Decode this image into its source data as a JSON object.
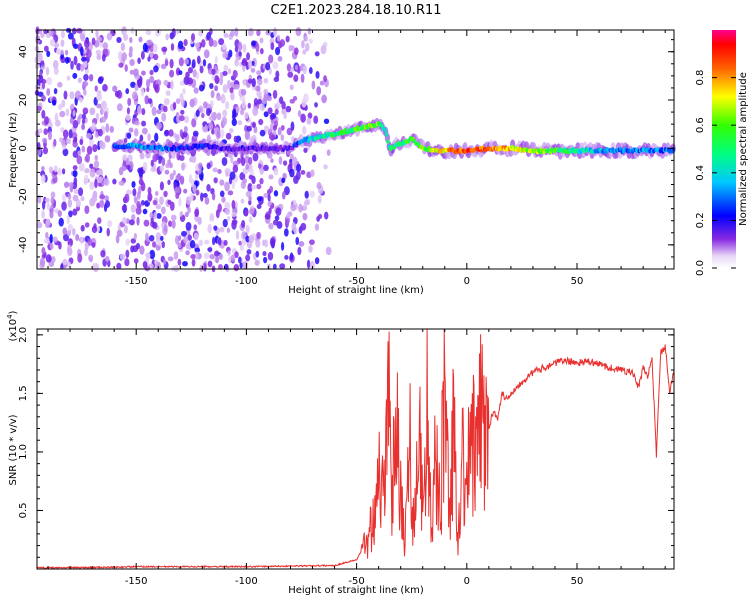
{
  "title": "C2E1.2023.284.18.10.R11",
  "chart_data": [
    {
      "type": "heatmap",
      "xlabel": "Height of straight line (km)",
      "ylabel": "Frequency (Hz)",
      "xlim": [
        -195,
        94
      ],
      "ylim": [
        -50,
        49
      ],
      "xticks": [
        -150,
        -100,
        -50,
        0,
        50
      ],
      "yticks": [
        -40,
        -20,
        0,
        20,
        40
      ],
      "colorbar": {
        "label": "Normalized spectral amplitude",
        "range": [
          0,
          1
        ],
        "ticks": [
          0.0,
          0.2,
          0.4,
          0.6,
          0.8
        ],
        "colormap": "rainbow (white-violet-blue-cyan-green-yellow-red)"
      },
      "trace": {
        "description": "dominant spectral ridge near 0 Hz",
        "x": [
          -160,
          -150,
          -140,
          -130,
          -120,
          -110,
          -100,
          -90,
          -80,
          -75,
          -70,
          -60,
          -50,
          -45,
          -40,
          -37,
          -35,
          -30,
          -25,
          -20,
          -10,
          0,
          10,
          20,
          30,
          40,
          50,
          60,
          70,
          80,
          90,
          94
        ],
        "y": [
          1,
          1,
          0,
          0,
          1,
          0,
          0,
          0,
          0,
          3,
          4,
          6,
          8,
          9,
          10,
          8,
          0,
          2,
          4,
          0,
          -1,
          -1,
          0,
          0,
          -1,
          -1,
          -1,
          -1,
          -1,
          -1,
          -1,
          -1
        ],
        "amplitude": [
          0.25,
          0.35,
          0.3,
          0.25,
          0.2,
          0.15,
          0.15,
          0.12,
          0.15,
          0.3,
          0.4,
          0.5,
          0.55,
          0.6,
          0.6,
          0.4,
          0.45,
          0.5,
          0.55,
          0.6,
          0.75,
          0.9,
          0.85,
          0.75,
          0.65,
          0.55,
          0.45,
          0.35,
          0.3,
          0.3,
          0.3,
          0.3
        ]
      },
      "scatter_extent": {
        "x_from": -195,
        "x_to": -62,
        "note": "diffuse noise speckles across full frequency range"
      }
    },
    {
      "type": "line",
      "xlabel": "Height of straight line (km)",
      "ylabel": "SNR (10 * v/v)",
      "y_multiplier_label": "(x10",
      "y_multiplier_exp": "4",
      "xlim": [
        -195,
        94
      ],
      "ylim": [
        0,
        2.05
      ],
      "xticks": [
        -150,
        -100,
        -50,
        0,
        50
      ],
      "yticks": [
        0.5,
        1.0,
        1.5,
        2.0
      ],
      "series": [
        {
          "color": "#e8302e",
          "x": [
            -195,
            -160,
            -150,
            -100,
            -60,
            -50,
            -45,
            -42,
            -40,
            -38,
            -36,
            -34,
            -32,
            -30,
            -28,
            -26,
            -24,
            -22,
            -20,
            -18,
            -16,
            -14,
            -12,
            -10,
            -8,
            -6,
            -4,
            -2,
            0,
            2,
            4,
            6,
            8,
            10,
            12,
            14,
            16,
            18,
            20,
            25,
            30,
            35,
            40,
            45,
            50,
            55,
            60,
            65,
            70,
            75,
            78,
            80,
            82,
            84,
            86,
            88,
            90,
            92,
            94
          ],
          "y": [
            0.01,
            0.015,
            0.02,
            0.02,
            0.03,
            0.08,
            0.25,
            0.5,
            0.9,
            0.6,
            1.8,
            0.4,
            1.6,
            0.7,
            0.2,
            1.2,
            0.3,
            1.3,
            0.5,
            1.6,
            0.2,
            1.0,
            0.5,
            1.7,
            0.4,
            1.2,
            0.3,
            1.0,
            0.6,
            1.3,
            0.8,
            1.4,
            1.1,
            1.2,
            1.35,
            1.3,
            1.5,
            1.45,
            1.5,
            1.6,
            1.68,
            1.72,
            1.76,
            1.78,
            1.76,
            1.77,
            1.75,
            1.72,
            1.7,
            1.68,
            1.55,
            1.72,
            1.65,
            1.8,
            0.98,
            1.85,
            1.9,
            1.5,
            1.7
          ]
        }
      ]
    }
  ]
}
